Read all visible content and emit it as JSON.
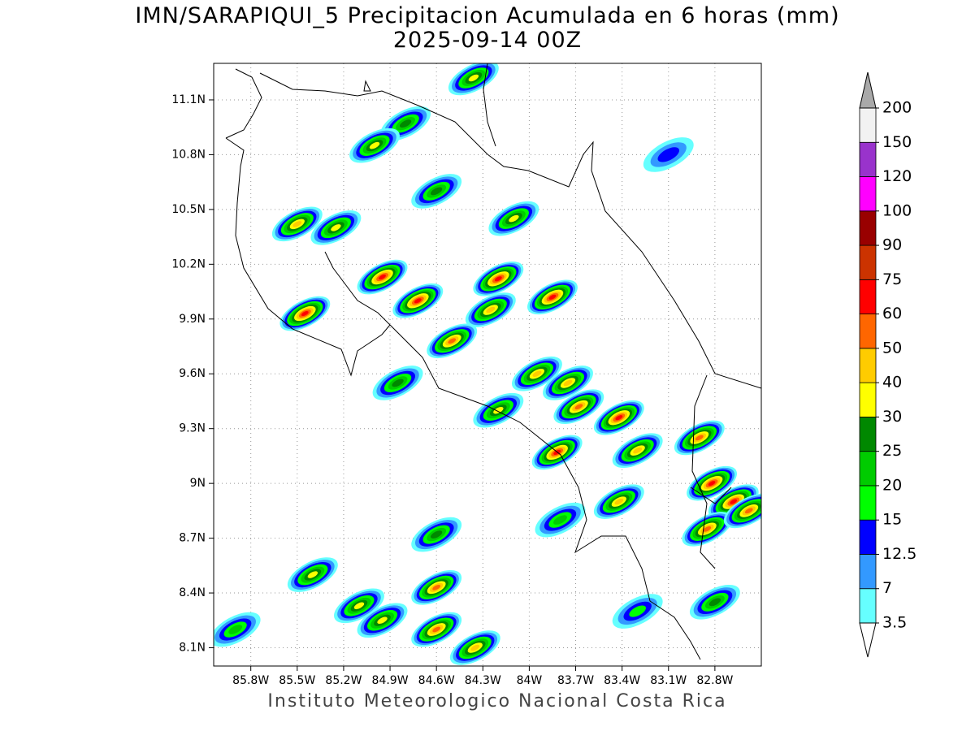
{
  "chart_data": {
    "type": "contour-map",
    "title": "IMN/SARAPIQUI_5 Precipitacion Acumulada en 6 horas (mm)",
    "subtitle": "2025-09-14 00Z",
    "source": "Instituto Meteorologico Nacional Costa Rica",
    "xlim": [
      -86.04,
      -82.5
    ],
    "ylim": [
      8.0,
      11.3
    ],
    "xticks": [
      {
        "value": -85.8,
        "label": "85.8W"
      },
      {
        "value": -85.5,
        "label": "85.5W"
      },
      {
        "value": -85.2,
        "label": "85.2W"
      },
      {
        "value": -84.9,
        "label": "84.9W"
      },
      {
        "value": -84.6,
        "label": "84.6W"
      },
      {
        "value": -84.3,
        "label": "84.3W"
      },
      {
        "value": -84.0,
        "label": "84W"
      },
      {
        "value": -83.7,
        "label": "83.7W"
      },
      {
        "value": -83.4,
        "label": "83.4W"
      },
      {
        "value": -83.1,
        "label": "83.1W"
      },
      {
        "value": -82.8,
        "label": "82.8W"
      }
    ],
    "yticks": [
      {
        "value": 8.1,
        "label": "8.1N"
      },
      {
        "value": 8.4,
        "label": "8.4N"
      },
      {
        "value": 8.7,
        "label": "8.7N"
      },
      {
        "value": 9.0,
        "label": "9N"
      },
      {
        "value": 9.3,
        "label": "9.3N"
      },
      {
        "value": 9.6,
        "label": "9.6N"
      },
      {
        "value": 9.9,
        "label": "9.9N"
      },
      {
        "value": 10.2,
        "label": "10.2N"
      },
      {
        "value": 10.5,
        "label": "10.5N"
      },
      {
        "value": 10.8,
        "label": "10.8N"
      },
      {
        "value": 11.1,
        "label": "11.1N"
      }
    ],
    "grid": true,
    "colorbar": {
      "levels": [
        3.5,
        7,
        12.5,
        15,
        20,
        25,
        30,
        40,
        50,
        60,
        75,
        90,
        100,
        120,
        150,
        200
      ],
      "colors": [
        "#66ffff",
        "#3399ff",
        "#0000ff",
        "#00ff00",
        "#00cc00",
        "#008800",
        "#ffff00",
        "#ffcc00",
        "#ff6600",
        "#ff0000",
        "#cc3300",
        "#990000",
        "#ff00ff",
        "#9933cc",
        "#f2f2f2"
      ],
      "over_color": "#a9a9a9",
      "under_color": "#ffffff"
    },
    "cells": [
      {
        "lon": -85.45,
        "lat": 9.93,
        "value": 60
      },
      {
        "lon": -84.95,
        "lat": 10.13,
        "value": 60
      },
      {
        "lon": -84.72,
        "lat": 10.0,
        "value": 60
      },
      {
        "lon": -84.5,
        "lat": 9.78,
        "value": 50
      },
      {
        "lon": -84.2,
        "lat": 10.12,
        "value": 60
      },
      {
        "lon": -84.25,
        "lat": 9.95,
        "value": 40
      },
      {
        "lon": -83.85,
        "lat": 10.02,
        "value": 60
      },
      {
        "lon": -83.95,
        "lat": 9.6,
        "value": 40
      },
      {
        "lon": -83.75,
        "lat": 9.55,
        "value": 40
      },
      {
        "lon": -83.42,
        "lat": 9.36,
        "value": 60
      },
      {
        "lon": -83.68,
        "lat": 9.42,
        "value": 50
      },
      {
        "lon": -83.82,
        "lat": 9.17,
        "value": 60
      },
      {
        "lon": -83.3,
        "lat": 9.18,
        "value": 40
      },
      {
        "lon": -83.42,
        "lat": 8.9,
        "value": 40
      },
      {
        "lon": -82.9,
        "lat": 9.25,
        "value": 50
      },
      {
        "lon": -82.82,
        "lat": 9.0,
        "value": 60
      },
      {
        "lon": -82.68,
        "lat": 8.9,
        "value": 60
      },
      {
        "lon": -82.85,
        "lat": 8.75,
        "value": 50
      },
      {
        "lon": -82.58,
        "lat": 8.85,
        "value": 50
      },
      {
        "lon": -85.5,
        "lat": 10.42,
        "value": 40
      },
      {
        "lon": -85.25,
        "lat": 10.4,
        "value": 30
      },
      {
        "lon": -84.6,
        "lat": 10.6,
        "value": 25
      },
      {
        "lon": -84.8,
        "lat": 10.97,
        "value": 25
      },
      {
        "lon": -84.36,
        "lat": 11.22,
        "value": 30
      },
      {
        "lon": -85.0,
        "lat": 10.85,
        "value": 30
      },
      {
        "lon": -84.6,
        "lat": 8.43,
        "value": 50
      },
      {
        "lon": -84.6,
        "lat": 8.2,
        "value": 50
      },
      {
        "lon": -84.95,
        "lat": 8.25,
        "value": 30
      },
      {
        "lon": -85.1,
        "lat": 8.33,
        "value": 30
      },
      {
        "lon": -85.4,
        "lat": 8.5,
        "value": 30
      },
      {
        "lon": -85.9,
        "lat": 8.2,
        "value": 20
      },
      {
        "lon": -84.35,
        "lat": 8.1,
        "value": 40
      },
      {
        "lon": -84.6,
        "lat": 8.72,
        "value": 25
      },
      {
        "lon": -83.8,
        "lat": 8.8,
        "value": 20
      },
      {
        "lon": -83.3,
        "lat": 8.3,
        "value": 15
      },
      {
        "lon": -82.8,
        "lat": 8.35,
        "value": 25
      },
      {
        "lon": -83.1,
        "lat": 10.8,
        "value": 12.5
      },
      {
        "lon": -84.1,
        "lat": 10.45,
        "value": 30
      },
      {
        "lon": -84.85,
        "lat": 9.55,
        "value": 25
      },
      {
        "lon": -84.2,
        "lat": 9.4,
        "value": 30
      }
    ]
  }
}
